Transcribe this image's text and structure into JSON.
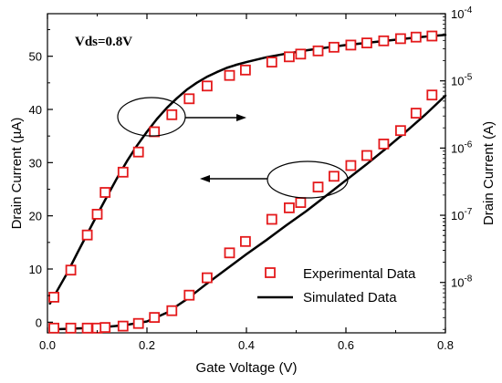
{
  "chart_data": {
    "type": "scatter",
    "annotation": "Vds=0.8V",
    "xlabel": "Gate Voltage (V)",
    "ylabel_left": "Drain Current (µA)",
    "ylabel_right": "Drain Current (A)",
    "xlim": [
      0,
      0.8
    ],
    "ylim_left": [
      -2,
      58
    ],
    "ylim_right_log": [
      -8.75,
      -4
    ],
    "x_ticks": [
      "0.0",
      "0.2",
      "0.4",
      "0.6",
      "0.8"
    ],
    "y_left_ticks": [
      "0",
      "10",
      "20",
      "30",
      "40",
      "50"
    ],
    "y_right_ticks": [
      {
        "base": "10",
        "exp": "-4"
      },
      {
        "base": "10",
        "exp": "-5"
      },
      {
        "base": "10",
        "exp": "-6"
      },
      {
        "base": "10",
        "exp": "-7"
      },
      {
        "base": "10",
        "exp": "-8"
      }
    ],
    "grid": false,
    "legend_position": "bottom-right",
    "legend": {
      "experimental": "Experimental Data",
      "simulated": "Simulated Data"
    },
    "colors": {
      "experimental": "#e41a1c",
      "simulated": "#000000"
    },
    "series": [
      {
        "name": "Experimental Data",
        "axis": "left",
        "style": "open-square",
        "x": [
          0.013,
          0.047,
          0.08,
          0.1,
          0.116,
          0.152,
          0.183,
          0.215,
          0.25,
          0.285,
          0.321,
          0.366,
          0.398,
          0.451,
          0.486,
          0.509,
          0.544,
          0.576,
          0.61,
          0.642,
          0.676,
          0.71,
          0.741,
          0.773
        ],
        "y": [
          4.7,
          9.8,
          16.4,
          20.3,
          24.4,
          28.2,
          32.0,
          35.8,
          39.0,
          42.0,
          44.4,
          46.4,
          47.4,
          48.9,
          49.9,
          50.4,
          51.0,
          51.7,
          52.1,
          52.5,
          52.9,
          53.3,
          53.6,
          53.8
        ]
      },
      {
        "name": "Simulated Data",
        "axis": "left",
        "style": "line",
        "x": [
          0.005,
          0.02,
          0.04,
          0.06,
          0.08,
          0.1,
          0.12,
          0.14,
          0.16,
          0.18,
          0.2,
          0.22,
          0.24,
          0.26,
          0.28,
          0.3,
          0.32,
          0.34,
          0.36,
          0.38,
          0.4,
          0.44,
          0.48,
          0.52,
          0.56,
          0.6,
          0.64,
          0.68,
          0.72,
          0.76,
          0.8
        ],
        "y": [
          3.5,
          6.0,
          9.3,
          13.0,
          16.6,
          20.2,
          23.7,
          27.1,
          30.3,
          33.2,
          35.8,
          38.2,
          40.3,
          42.1,
          43.7,
          45.0,
          46.1,
          47.0,
          47.8,
          48.4,
          48.9,
          49.8,
          50.5,
          51.1,
          51.6,
          52.1,
          52.5,
          52.9,
          53.3,
          53.7,
          54.0
        ]
      },
      {
        "name": "Experimental Data",
        "axis": "right",
        "style": "open-square",
        "x": [
          0.013,
          0.047,
          0.08,
          0.1,
          0.116,
          0.152,
          0.183,
          0.215,
          0.25,
          0.285,
          0.321,
          0.366,
          0.398,
          0.451,
          0.486,
          0.509,
          0.544,
          0.576,
          0.61,
          0.642,
          0.676,
          0.71,
          0.741,
          0.773
        ],
        "y_log10": [
          -8.68,
          -8.68,
          -8.68,
          -8.68,
          -8.67,
          -8.65,
          -8.61,
          -8.52,
          -8.42,
          -8.19,
          -7.93,
          -7.56,
          -7.39,
          -7.06,
          -6.89,
          -6.81,
          -6.58,
          -6.42,
          -6.26,
          -6.11,
          -5.94,
          -5.74,
          -5.48,
          -5.21
        ]
      },
      {
        "name": "Simulated Data",
        "axis": "right",
        "style": "line",
        "x": [
          0.005,
          0.04,
          0.08,
          0.12,
          0.16,
          0.2,
          0.24,
          0.28,
          0.32,
          0.36,
          0.4,
          0.44,
          0.48,
          0.52,
          0.56,
          0.6,
          0.64,
          0.68,
          0.72,
          0.76,
          0.8
        ],
        "y_log10": [
          -8.7,
          -8.69,
          -8.68,
          -8.66,
          -8.63,
          -8.58,
          -8.45,
          -8.25,
          -8.02,
          -7.8,
          -7.58,
          -7.37,
          -7.15,
          -6.94,
          -6.71,
          -6.48,
          -6.25,
          -6.01,
          -5.76,
          -5.5,
          -5.22
        ]
      }
    ]
  }
}
